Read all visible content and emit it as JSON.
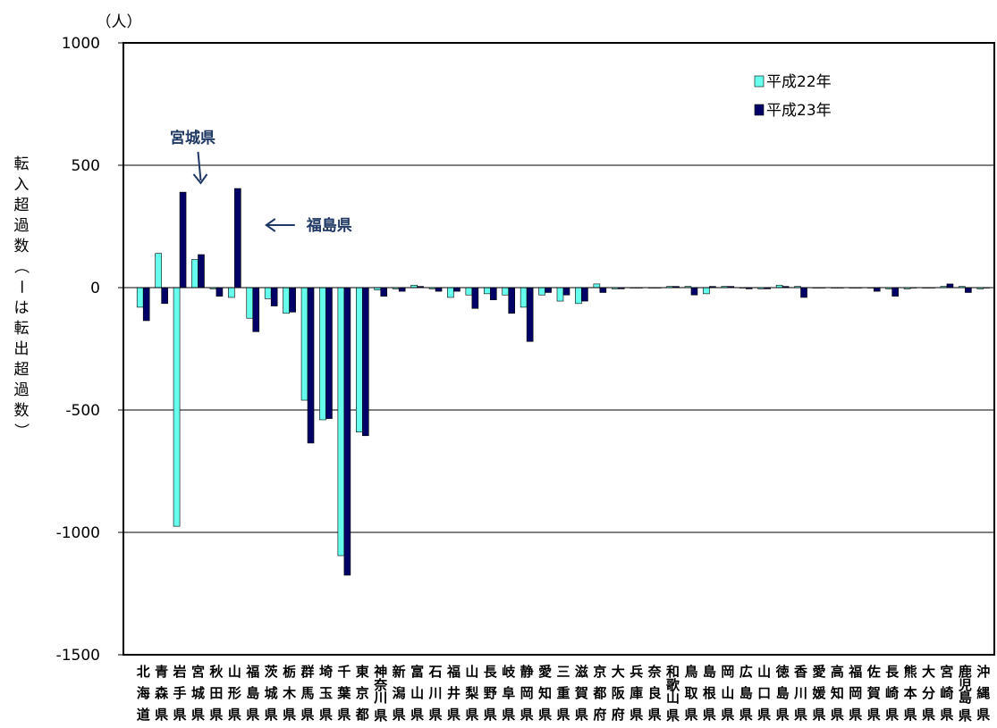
{
  "chart_data": {
    "type": "bar",
    "unit": "（人）",
    "ylabel": "転入超過数（ーは転出超過数）",
    "ylim": [
      -1500,
      1000
    ],
    "yticks": [
      1000,
      500,
      0,
      -500,
      -1000,
      -1500
    ],
    "ytick_labels": [
      "1000",
      "500",
      "0",
      "-500",
      "-1000",
      "-1500"
    ],
    "grid": "horizontal",
    "legend_position": "top-right",
    "colors": {
      "h22": "#66ffee",
      "h23": "#000066"
    },
    "categories": [
      "北海道",
      "青森県",
      "岩手県",
      "宮城県",
      "秋田県",
      "山形県",
      "福島県",
      "茨城県",
      "栃木県",
      "群馬県",
      "埼玉県",
      "千葉県",
      "東京都",
      "神奈川県",
      "新潟県",
      "富山県",
      "石川県",
      "福井県",
      "山梨県",
      "長野県",
      "岐阜県",
      "静岡県",
      "愛知県",
      "三重県",
      "滋賀県",
      "京都府",
      "大阪府",
      "兵庫県",
      "奈良県",
      "和歌山県",
      "鳥取県",
      "島根県",
      "岡山県",
      "広島県",
      "山口県",
      "徳島県",
      "香川県",
      "愛媛県",
      "高知県",
      "福岡県",
      "佐賀県",
      "長崎県",
      "熊本県",
      "大分県",
      "宮崎県",
      "鹿児島県",
      "沖縄県"
    ],
    "series": [
      {
        "name": "平成22年",
        "values": [
          -80,
          140,
          -975,
          115,
          -5,
          -40,
          -125,
          -45,
          -105,
          -460,
          -540,
          -1095,
          -590,
          -10,
          -5,
          10,
          -5,
          -40,
          -30,
          -25,
          -30,
          -80,
          -30,
          -55,
          -65,
          15,
          -5,
          0,
          0,
          5,
          5,
          -25,
          5,
          0,
          -5,
          10,
          5,
          0,
          0,
          0,
          0,
          -5,
          -5,
          0,
          5,
          5,
          -5
        ]
      },
      {
        "name": "平成23年",
        "values": [
          -135,
          -65,
          390,
          135,
          -35,
          405,
          -180,
          -75,
          -100,
          -635,
          -535,
          -1175,
          -605,
          -35,
          -15,
          5,
          -15,
          -15,
          -85,
          -50,
          -105,
          -220,
          -20,
          -30,
          -55,
          -20,
          -5,
          0,
          0,
          5,
          -30,
          5,
          5,
          -5,
          -5,
          5,
          -40,
          0,
          0,
          0,
          -15,
          -35,
          0,
          0,
          15,
          -20,
          0
        ]
      }
    ],
    "annotations": [
      {
        "text": "宮城県",
        "target": "宮城県"
      },
      {
        "text": "福島県",
        "target": "福島県"
      }
    ]
  }
}
